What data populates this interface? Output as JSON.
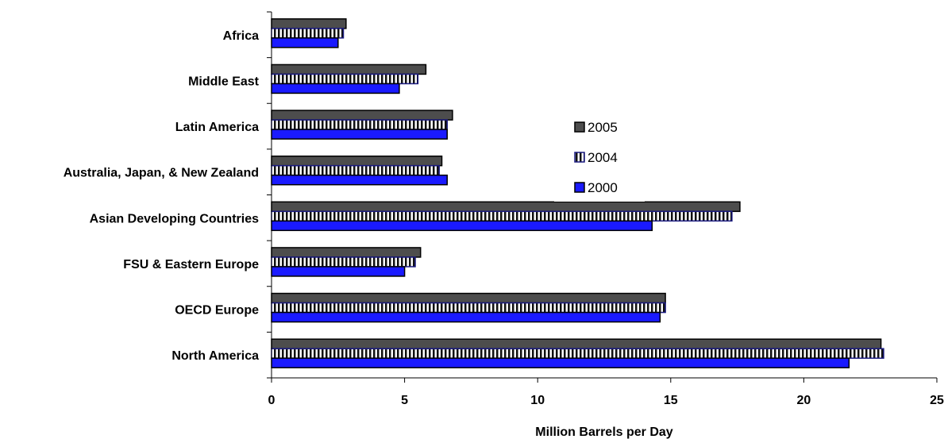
{
  "chart_data": {
    "type": "bar",
    "orientation": "horizontal",
    "categories": [
      "Africa",
      "Middle East",
      "Latin America",
      "Australia, Japan, & New Zealand",
      "Asian Developing Countries",
      "FSU & Eastern Europe",
      "OECD Europe",
      "North America"
    ],
    "series": [
      {
        "name": "2005",
        "values": [
          2.8,
          5.8,
          6.8,
          6.4,
          17.6,
          5.6,
          14.8,
          22.9
        ],
        "color": "#4d4d4d",
        "pattern": "solid-dark"
      },
      {
        "name": "2004",
        "values": [
          2.7,
          5.5,
          6.6,
          6.3,
          17.3,
          5.4,
          14.8,
          23.0
        ],
        "color": "#ffffff",
        "pattern": "vertical-stripes"
      },
      {
        "name": "2000",
        "values": [
          2.5,
          4.8,
          6.6,
          6.6,
          14.3,
          5.0,
          14.6,
          21.7
        ],
        "color": "#1a1aff",
        "pattern": "solid-blue"
      }
    ],
    "xlabel": "Million Barrels per Day",
    "xlim": [
      0,
      25
    ],
    "xticks": [
      0,
      5,
      10,
      15,
      20,
      25
    ],
    "grid": false,
    "legend_position": "center-right"
  }
}
